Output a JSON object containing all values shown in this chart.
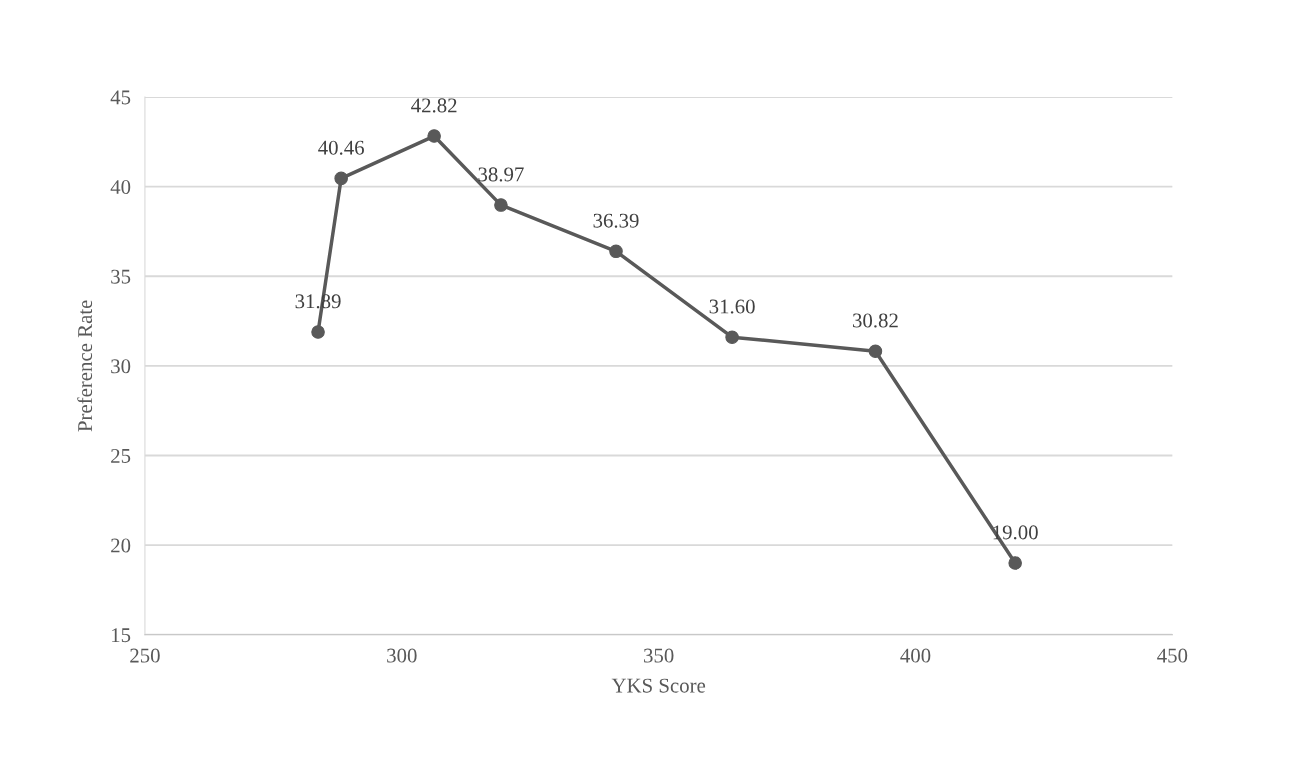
{
  "chart_data": {
    "type": "line",
    "xlabel": "YKS Score",
    "ylabel": "Preference Rate",
    "x": [
      283.7,
      288.2,
      306.3,
      319.3,
      341.7,
      364.3,
      392.2,
      419.4
    ],
    "series": [
      {
        "color": "#595959",
        "values": [
          31.89,
          40.46,
          42.82,
          38.97,
          36.39,
          31.6,
          30.82,
          19.0
        ],
        "value_labels": [
          "31.89",
          "40.46",
          "42.82",
          "38.97",
          "36.39",
          "31.60",
          "30.82",
          "19.00"
        ]
      }
    ],
    "xlim": [
      250,
      450
    ],
    "xticks": [
      250,
      300,
      350,
      400,
      450
    ],
    "ylim": [
      15,
      45
    ],
    "yticks": [
      15,
      20,
      25,
      30,
      35,
      40,
      45
    ],
    "grid": "y",
    "marker": "circle",
    "line_style": "solid"
  }
}
